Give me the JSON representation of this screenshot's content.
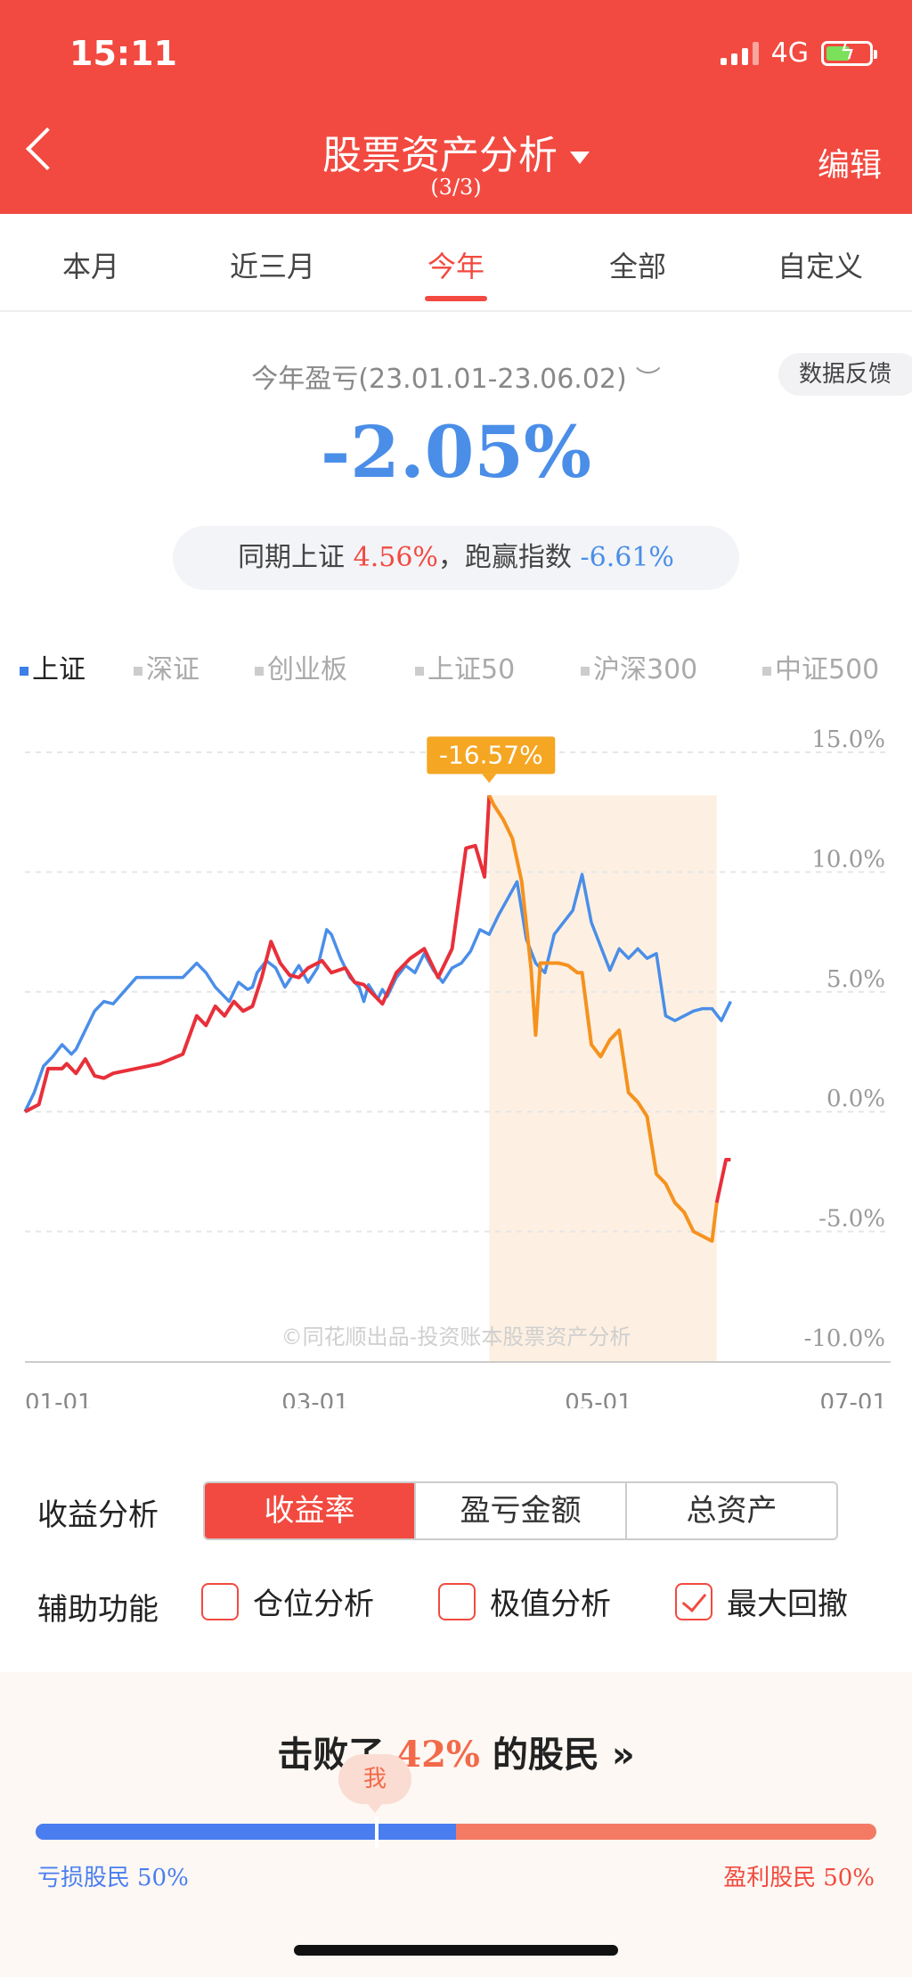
{
  "status_bar": {
    "time": "15:11",
    "network": "4G"
  },
  "header": {
    "title": "股票资产分析",
    "page_indicator": "(3/3)",
    "edit_label": "编辑"
  },
  "tabs": [
    {
      "label": "本月"
    },
    {
      "label": "近三月"
    },
    {
      "label": "今年",
      "active": true
    },
    {
      "label": "全部"
    },
    {
      "label": "自定义"
    }
  ],
  "summary": {
    "label": "今年盈亏(23.01.01-23.06.02)",
    "feedback_label": "数据反馈",
    "return_pct": "-2.05%",
    "compare_label": "同期上证",
    "compare_value": "4.56%",
    "beat_label": "，跑赢指数",
    "beat_value": "-6.61%"
  },
  "indices": [
    {
      "label": "上证",
      "active": true
    },
    {
      "label": "深证"
    },
    {
      "label": "创业板"
    },
    {
      "label": "上证50"
    },
    {
      "label": "沪深300"
    },
    {
      "label": "中证500"
    }
  ],
  "chart_data": {
    "type": "line",
    "x_ticks": [
      "01-01",
      "03-01",
      "05-01",
      "07-01"
    ],
    "y_ticks": [
      "15.0%",
      "10.0%",
      "5.0%",
      "0.0%",
      "-5.0%",
      "-10.0%"
    ],
    "ylim": [
      -10,
      15
    ],
    "x_range": [
      "01-01",
      "07-01"
    ],
    "grid": true,
    "drawdown_label": "-16.57%",
    "drawdown_range": [
      "04-11",
      "05-30"
    ],
    "footer": "©同花顺出品-投资账本股票资产分析",
    "colors": {
      "portfolio": "#e8303a",
      "drawdown": "#f5921e",
      "index": "#4a8ee8",
      "badge": "#f5a623"
    },
    "series": [
      {
        "key": "index",
        "x": [
          "01-01",
          "01-03",
          "01-05",
          "01-07",
          "01-09",
          "01-11",
          "01-12",
          "01-14",
          "01-16",
          "01-18",
          "01-20",
          "01-25",
          "01-30",
          "02-04",
          "02-07",
          "02-09",
          "02-11",
          "02-12",
          "02-14",
          "02-16",
          "02-18",
          "02-19",
          "02-20",
          "02-22",
          "02-24",
          "02-26",
          "03-01",
          "03-03",
          "03-05",
          "03-07",
          "03-08",
          "03-10",
          "03-12",
          "03-14",
          "03-15",
          "03-16",
          "03-18",
          "03-19",
          "03-20",
          "03-22",
          "03-24",
          "03-26",
          "03-28",
          "03-30",
          "04-01",
          "04-03",
          "04-05",
          "04-07",
          "04-09",
          "04-11",
          "04-13",
          "04-15",
          "04-17",
          "04-19",
          "04-21",
          "04-23",
          "04-25",
          "04-27",
          "04-29",
          "05-01",
          "05-03",
          "05-05",
          "05-07",
          "05-09",
          "05-11",
          "05-13",
          "05-15",
          "05-17",
          "05-19",
          "05-21",
          "05-23",
          "05-25",
          "05-27",
          "05-29",
          "05-31",
          "06-02"
        ],
        "values": [
          0.0,
          0.8,
          1.9,
          2.3,
          2.8,
          2.4,
          2.6,
          3.4,
          4.2,
          4.6,
          4.5,
          5.6,
          5.6,
          5.6,
          6.2,
          5.8,
          5.2,
          5.0,
          4.6,
          5.4,
          5.1,
          5.2,
          5.8,
          6.3,
          6.0,
          5.2,
          6.1,
          5.4,
          6.0,
          7.6,
          7.4,
          6.4,
          5.6,
          5.2,
          4.6,
          5.3,
          4.7,
          5.1,
          4.8,
          5.6,
          6.1,
          5.8,
          6.6,
          5.9,
          5.4,
          6.0,
          6.2,
          6.7,
          7.6,
          7.4,
          8.2,
          8.9,
          9.6,
          7.2,
          6.2,
          5.8,
          7.4,
          7.9,
          8.4,
          9.9,
          7.9,
          6.9,
          5.9,
          6.8,
          6.4,
          6.8,
          6.4,
          6.6,
          4.0,
          3.8,
          4.0,
          4.2,
          4.3,
          4.3,
          3.8,
          4.6
        ]
      },
      {
        "key": "portfolio",
        "x": [
          "01-01",
          "01-04",
          "01-06",
          "01-09",
          "01-10",
          "01-12",
          "01-14",
          "01-16",
          "01-18",
          "01-20",
          "01-25",
          "01-30",
          "02-04",
          "02-07",
          "02-09",
          "02-11",
          "02-13",
          "02-15",
          "02-17",
          "02-19",
          "02-21",
          "02-23",
          "02-25",
          "02-27",
          "03-01",
          "03-03",
          "03-06",
          "03-08",
          "03-11",
          "03-13",
          "03-15",
          "03-17",
          "03-19",
          "03-22",
          "03-25",
          "03-28",
          "03-31",
          "04-03",
          "04-06",
          "04-08",
          "04-10",
          "04-11",
          "04-12",
          "04-14",
          "04-16",
          "04-18",
          "04-19",
          "04-20",
          "04-21",
          "04-22",
          "04-24",
          "04-26",
          "04-28",
          "04-30",
          "05-01",
          "05-03",
          "05-05",
          "05-07",
          "05-09",
          "05-11",
          "05-13",
          "05-15",
          "05-17",
          "05-19",
          "05-21",
          "05-23",
          "05-25",
          "05-27",
          "05-29",
          "05-30",
          "06-01",
          "06-02"
        ],
        "values": [
          0.0,
          0.3,
          1.8,
          1.8,
          2.0,
          1.6,
          2.2,
          1.5,
          1.4,
          1.6,
          1.8,
          2.0,
          2.4,
          4.0,
          3.6,
          4.4,
          4.0,
          4.6,
          4.2,
          4.4,
          5.6,
          7.1,
          6.2,
          5.7,
          5.6,
          6.0,
          6.3,
          5.8,
          6.0,
          5.4,
          5.3,
          4.9,
          4.5,
          5.8,
          6.4,
          6.8,
          5.6,
          6.8,
          11.0,
          11.1,
          9.8,
          13.2,
          12.8,
          12.2,
          11.4,
          9.6,
          7.8,
          6.0,
          3.2,
          6.2,
          6.2,
          6.2,
          6.1,
          5.8,
          5.8,
          2.8,
          2.3,
          3.0,
          3.4,
          0.8,
          0.4,
          -0.2,
          -2.6,
          -3.0,
          -3.8,
          -4.2,
          -5.0,
          -5.2,
          -5.4,
          -3.8,
          -2.0,
          -2.0
        ]
      }
    ]
  },
  "analysis": {
    "label": "收益分析",
    "options": [
      {
        "label": "收益率",
        "active": true
      },
      {
        "label": "盈亏金额"
      },
      {
        "label": "总资产"
      }
    ]
  },
  "aux": {
    "label": "辅助功能",
    "options": [
      {
        "label": "仓位分析",
        "checked": false
      },
      {
        "label": "极值分析",
        "checked": false
      },
      {
        "label": "最大回撤",
        "checked": true
      }
    ]
  },
  "beat": {
    "prefix": "击败了",
    "value": "42%",
    "suffix": "的股民",
    "arrow": "»",
    "me_label": "我",
    "me_position_pct": 42,
    "loss_label": "亏损股民",
    "loss_pct": "50%",
    "profit_label": "盈利股民",
    "profit_pct": "50%",
    "loss_fraction": 0.5
  }
}
